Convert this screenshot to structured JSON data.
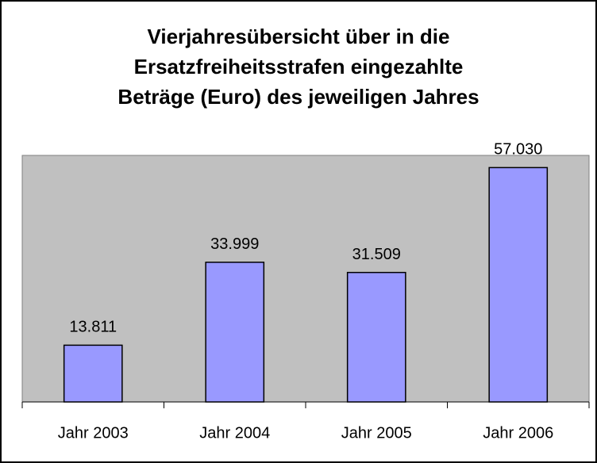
{
  "chart_data": {
    "type": "bar",
    "title": [
      "Vierjahresübersicht über in die",
      "Ersatzfreiheitsstrafen eingezahlte",
      "Beträge (Euro) des jeweiligen Jahres"
    ],
    "categories": [
      "Jahr 2003",
      "Jahr 2004",
      "Jahr 2005",
      "Jahr 2006"
    ],
    "values": [
      13811,
      33999,
      31509,
      57030
    ],
    "value_labels": [
      "13.811",
      "33.999",
      "31.509",
      "57.030"
    ],
    "color": "#9999ff",
    "ylim": [
      0,
      60000
    ]
  }
}
